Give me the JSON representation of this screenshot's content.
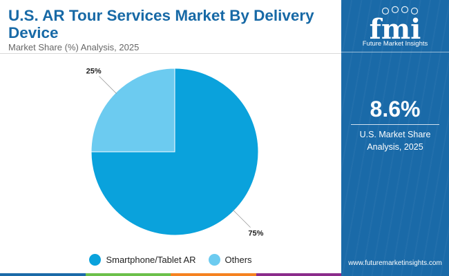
{
  "chart_data": {
    "type": "pie",
    "title": "U.S. AR Tour Services Market By Delivery Device",
    "subtitle": "Market Share (%) Analysis, 2025",
    "categories": [
      "Smartphone/Tablet AR",
      "Others"
    ],
    "values": [
      75,
      25
    ],
    "data_labels": [
      "75%",
      "25%"
    ],
    "colors": [
      "#0aa2dc",
      "#6ccbf0"
    ],
    "legend_position": "bottom"
  },
  "sidebar": {
    "logo_text": "fmi",
    "logo_caption": "Future Market Insights",
    "stat_value": "8.6%",
    "stat_label_line1": "U.S. Market Share",
    "stat_label_line2": "Analysis, 2025",
    "website": "www.futuremarketinsights.com",
    "background_color": "#1a6aa8"
  },
  "bottom_bar_colors": [
    "#1a6aa8",
    "#6cc04a",
    "#f58220",
    "#8b2c8b"
  ]
}
